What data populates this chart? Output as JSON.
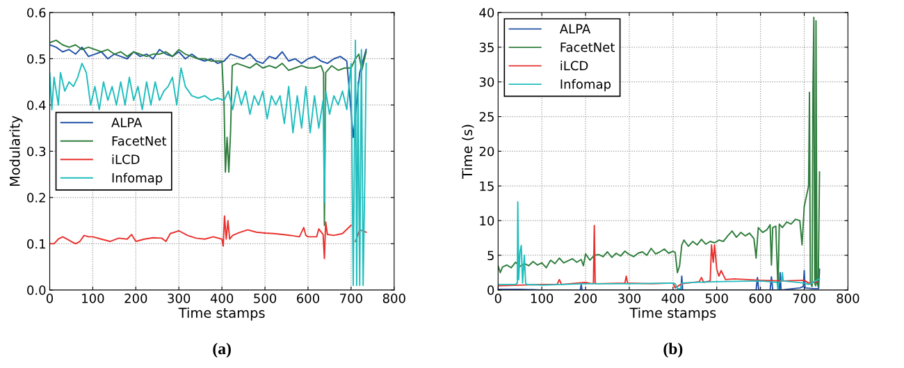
{
  "chart_data": [
    {
      "type": "line",
      "xlabel": "Time stamps",
      "ylabel": "Modularity",
      "annotations": [
        "(a)"
      ],
      "xlim": [
        0,
        800
      ],
      "xticks": [
        0,
        100,
        200,
        300,
        400,
        500,
        600,
        700,
        800
      ],
      "ylim": [
        0,
        0.6
      ],
      "yticks": [
        {
          "value": 0,
          "label": "0.0"
        },
        0.1,
        0.2,
        0.3,
        0.4,
        0.5,
        0.6
      ],
      "grid": true,
      "legend": "center left",
      "line_style": "solid",
      "marker": "none",
      "series": [
        {
          "name": "ALPA",
          "color": "#2152a6",
          "x": [
            0,
            15,
            30,
            45,
            60,
            75,
            90,
            105,
            120,
            135,
            150,
            165,
            180,
            195,
            210,
            225,
            240,
            255,
            270,
            285,
            300,
            315,
            330,
            345,
            360,
            375,
            390,
            405,
            420,
            435,
            450,
            465,
            480,
            495,
            510,
            525,
            540,
            555,
            570,
            585,
            600,
            615,
            630,
            645,
            660,
            675,
            690,
            705,
            720,
            735
          ],
          "values": [
            0.53,
            0.525,
            0.515,
            0.52,
            0.51,
            0.525,
            0.505,
            0.51,
            0.515,
            0.5,
            0.51,
            0.505,
            0.5,
            0.515,
            0.505,
            0.51,
            0.5,
            0.52,
            0.51,
            0.505,
            0.515,
            0.5,
            0.51,
            0.5,
            0.495,
            0.5,
            0.49,
            0.495,
            0.51,
            0.505,
            0.5,
            0.51,
            0.495,
            0.49,
            0.505,
            0.5,
            0.515,
            0.495,
            0.5,
            0.49,
            0.5,
            0.505,
            0.495,
            0.49,
            0.5,
            0.505,
            0.495,
            0.33,
            0.47,
            0.52
          ]
        },
        {
          "name": "FacetNet",
          "color": "#2e7d3c",
          "x": [
            0,
            15,
            30,
            45,
            60,
            75,
            90,
            105,
            120,
            135,
            150,
            165,
            180,
            195,
            210,
            225,
            240,
            255,
            270,
            285,
            300,
            315,
            330,
            345,
            360,
            375,
            390,
            400,
            405,
            408,
            412,
            416,
            420,
            424,
            435,
            450,
            465,
            480,
            495,
            510,
            525,
            540,
            555,
            570,
            585,
            600,
            615,
            630,
            636,
            638,
            641,
            655,
            670,
            685,
            700,
            710,
            718,
            725,
            735
          ],
          "values": [
            0.535,
            0.54,
            0.53,
            0.525,
            0.53,
            0.52,
            0.525,
            0.52,
            0.515,
            0.52,
            0.51,
            0.515,
            0.505,
            0.515,
            0.51,
            0.505,
            0.51,
            0.51,
            0.515,
            0.505,
            0.52,
            0.51,
            0.505,
            0.5,
            0.5,
            0.495,
            0.495,
            0.495,
            0.4,
            0.255,
            0.33,
            0.255,
            0.34,
            0.485,
            0.49,
            0.485,
            0.48,
            0.49,
            0.48,
            0.485,
            0.48,
            0.49,
            0.475,
            0.48,
            0.485,
            0.48,
            0.48,
            0.485,
            0.47,
            0.14,
            0.47,
            0.485,
            0.475,
            0.48,
            0.48,
            0.5,
            0.51,
            0.475,
            0.515
          ]
        },
        {
          "name": "iLCD",
          "color": "#e8302c",
          "x": [
            0,
            10,
            20,
            30,
            40,
            50,
            60,
            70,
            80,
            90,
            100,
            120,
            140,
            160,
            180,
            190,
            200,
            220,
            240,
            260,
            270,
            280,
            300,
            320,
            340,
            360,
            380,
            400,
            403,
            406,
            410,
            414,
            418,
            425,
            440,
            460,
            480,
            500,
            520,
            540,
            560,
            580,
            590,
            595,
            600,
            620,
            625,
            635,
            638,
            641,
            645,
            660,
            680,
            700,
            705,
            710,
            720,
            735
          ],
          "values": [
            0.1,
            0.1,
            0.11,
            0.115,
            0.11,
            0.105,
            0.1,
            0.105,
            0.118,
            0.115,
            0.115,
            0.11,
            0.105,
            0.112,
            0.11,
            0.12,
            0.105,
            0.11,
            0.113,
            0.112,
            0.105,
            0.122,
            0.128,
            0.118,
            0.112,
            0.11,
            0.115,
            0.11,
            0.095,
            0.16,
            0.11,
            0.15,
            0.11,
            0.118,
            0.124,
            0.13,
            0.125,
            0.123,
            0.122,
            0.12,
            0.118,
            0.115,
            0.135,
            0.118,
            0.115,
            0.115,
            0.132,
            0.12,
            0.068,
            0.147,
            0.12,
            0.118,
            0.122,
            0.14,
            null,
            0.105,
            0.13,
            0.125
          ]
        },
        {
          "name": "Infomap",
          "color": "#1fbdbd",
          "x": [
            0,
            5,
            10,
            20,
            25,
            35,
            45,
            55,
            65,
            75,
            85,
            95,
            105,
            115,
            125,
            135,
            145,
            155,
            165,
            175,
            185,
            195,
            205,
            215,
            225,
            235,
            245,
            255,
            265,
            275,
            285,
            295,
            305,
            315,
            330,
            345,
            360,
            375,
            390,
            405,
            415,
            425,
            435,
            445,
            455,
            465,
            475,
            485,
            495,
            505,
            515,
            525,
            535,
            545,
            555,
            565,
            575,
            585,
            595,
            605,
            615,
            625,
            635,
            638,
            641,
            650,
            660,
            670,
            680,
            690,
            700,
            705,
            710,
            713,
            716,
            720,
            724,
            728,
            732,
            735
          ],
          "values": [
            0.47,
            0.39,
            0.46,
            0.4,
            0.47,
            0.43,
            0.45,
            0.44,
            0.46,
            0.49,
            0.47,
            0.4,
            0.44,
            0.39,
            0.45,
            0.41,
            0.44,
            0.4,
            0.45,
            0.4,
            0.46,
            0.41,
            0.44,
            0.39,
            0.45,
            0.4,
            0.45,
            0.41,
            0.43,
            0.44,
            0.46,
            0.4,
            0.48,
            0.44,
            0.42,
            0.415,
            0.42,
            0.41,
            0.415,
            0.41,
            0.43,
            0.39,
            0.44,
            0.4,
            0.43,
            0.38,
            0.42,
            0.4,
            0.43,
            0.37,
            0.42,
            0.4,
            0.42,
            0.36,
            0.44,
            0.34,
            0.42,
            0.35,
            0.44,
            0.34,
            0.42,
            0.35,
            0.41,
            0.19,
            0.43,
            0.38,
            0.42,
            0.4,
            0.43,
            0.39,
            0.49,
            0.01,
            0.54,
            0.01,
            0.45,
            0.01,
            0.52,
            0.01,
            0.25,
            0.49
          ]
        }
      ]
    },
    {
      "type": "line",
      "xlabel": "Time stamps",
      "ylabel": "Time (s)",
      "annotations": [
        "(b)"
      ],
      "xlim": [
        0,
        800
      ],
      "xticks": [
        0,
        100,
        200,
        300,
        400,
        500,
        600,
        700,
        800
      ],
      "ylim": [
        0,
        40
      ],
      "yticks": [
        0,
        5,
        10,
        15,
        20,
        25,
        30,
        35,
        40
      ],
      "grid": true,
      "legend": "top left",
      "line_style": "solid",
      "marker": "none",
      "series": [
        {
          "name": "ALPA",
          "color": "#2152a6",
          "x": [
            0,
            50,
            100,
            150,
            188,
            190,
            192,
            250,
            300,
            350,
            400,
            418,
            420,
            422,
            500,
            590,
            593,
            596,
            622,
            625,
            628,
            643,
            645,
            647,
            690,
            698,
            700,
            702,
            720,
            733,
            735
          ],
          "values": [
            0.1,
            0.1,
            0,
            0,
            0,
            0.8,
            0,
            0,
            0,
            0,
            0,
            0,
            2.0,
            0,
            0,
            0,
            1.8,
            0,
            0,
            1.9,
            0,
            0,
            2.5,
            0,
            0.3,
            0.5,
            2.8,
            0.3,
            0.2,
            0.2,
            3.0
          ]
        },
        {
          "name": "FacetNet",
          "color": "#2e7d3c",
          "x": [
            0,
            5,
            10,
            20,
            30,
            40,
            50,
            60,
            70,
            80,
            90,
            100,
            110,
            120,
            130,
            140,
            150,
            160,
            170,
            180,
            190,
            195,
            200,
            210,
            220,
            230,
            240,
            250,
            260,
            270,
            280,
            290,
            300,
            310,
            320,
            330,
            340,
            350,
            360,
            370,
            380,
            390,
            400,
            405,
            410,
            415,
            420,
            425,
            435,
            445,
            455,
            465,
            475,
            485,
            495,
            505,
            515,
            525,
            535,
            545,
            555,
            565,
            575,
            585,
            590,
            595,
            605,
            615,
            622,
            625,
            628,
            635,
            640,
            643,
            650,
            660,
            670,
            680,
            690,
            695,
            700,
            705,
            710,
            712,
            714,
            718,
            720,
            722,
            724,
            726,
            727,
            729,
            732,
            735
          ],
          "values": [
            3.5,
            2.5,
            3.3,
            3.6,
            3.2,
            4.0,
            3.4,
            3.8,
            3.5,
            4.1,
            3.6,
            3.9,
            3.2,
            4.3,
            3.8,
            4.6,
            3.9,
            4.2,
            4.5,
            4.0,
            4.4,
            3.5,
            5.2,
            4.3,
            5.0,
            5.1,
            4.8,
            5.5,
            4.7,
            5.3,
            4.9,
            5.6,
            5.1,
            4.8,
            5.3,
            5.5,
            5.0,
            6.0,
            5.2,
            5.5,
            5.9,
            5.3,
            5.6,
            5.4,
            2.5,
            3.5,
            6.5,
            7.2,
            6.3,
            7.0,
            6.5,
            7.3,
            6.6,
            7.0,
            6.8,
            7.2,
            7.0,
            7.8,
            8.5,
            7.6,
            8.3,
            7.8,
            8.2,
            7.4,
            4.6,
            9.0,
            8.3,
            8.7,
            9.4,
            3.6,
            9.0,
            9.2,
            0.2,
            9.5,
            9.0,
            9.8,
            9.5,
            10.2,
            10.0,
            6.5,
            12.0,
            13.5,
            15.0,
            28.5,
            1.0,
            0.5,
            29.0,
            39.3,
            1.0,
            0.6,
            38.8,
            1.0,
            0.5,
            17.0
          ]
        },
        {
          "name": "iLCD",
          "color": "#e8302c",
          "x": [
            0,
            50,
            100,
            135,
            140,
            145,
            200,
            215,
            218,
            220,
            222,
            225,
            290,
            293,
            296,
            350,
            400,
            405,
            420,
            460,
            465,
            470,
            485,
            488,
            492,
            495,
            500,
            505,
            510,
            520,
            540,
            600,
            650,
            700,
            710,
            730
          ],
          "values": [
            0.6,
            0.7,
            0.8,
            0.8,
            1.5,
            0.8,
            1.1,
            0.9,
            1.0,
            9.3,
            1.0,
            0.9,
            1.0,
            2.0,
            1.0,
            0.9,
            1.0,
            0.3,
            0.9,
            1.2,
            1.8,
            1.1,
            1.3,
            6.5,
            4.0,
            6.5,
            3.0,
            2.0,
            2.8,
            1.5,
            1.6,
            1.4,
            1.3,
            1.4,
            1.0,
            1.2
          ]
        },
        {
          "name": "Infomap",
          "color": "#1fbdbd",
          "x": [
            0,
            20,
            40,
            44,
            45,
            47,
            50,
            53,
            56,
            60,
            63,
            65,
            100,
            200,
            300,
            400,
            405,
            410,
            418,
            420,
            450,
            500,
            600,
            638,
            640,
            642,
            648,
            650,
            652,
            700,
            710,
            735
          ],
          "values": [
            0.8,
            0.8,
            0.8,
            1.0,
            12.7,
            1.5,
            5.5,
            6.4,
            1.0,
            5.0,
            1.0,
            0.8,
            0.7,
            0.9,
            0.9,
            1.0,
            0.9,
            0.2,
            0.2,
            1.0,
            1.1,
            1.2,
            1.3,
            1.1,
            0.1,
            1.1,
            1.3,
            2.5,
            1.3,
            1.0,
            0.8,
            1.6
          ]
        }
      ]
    }
  ]
}
